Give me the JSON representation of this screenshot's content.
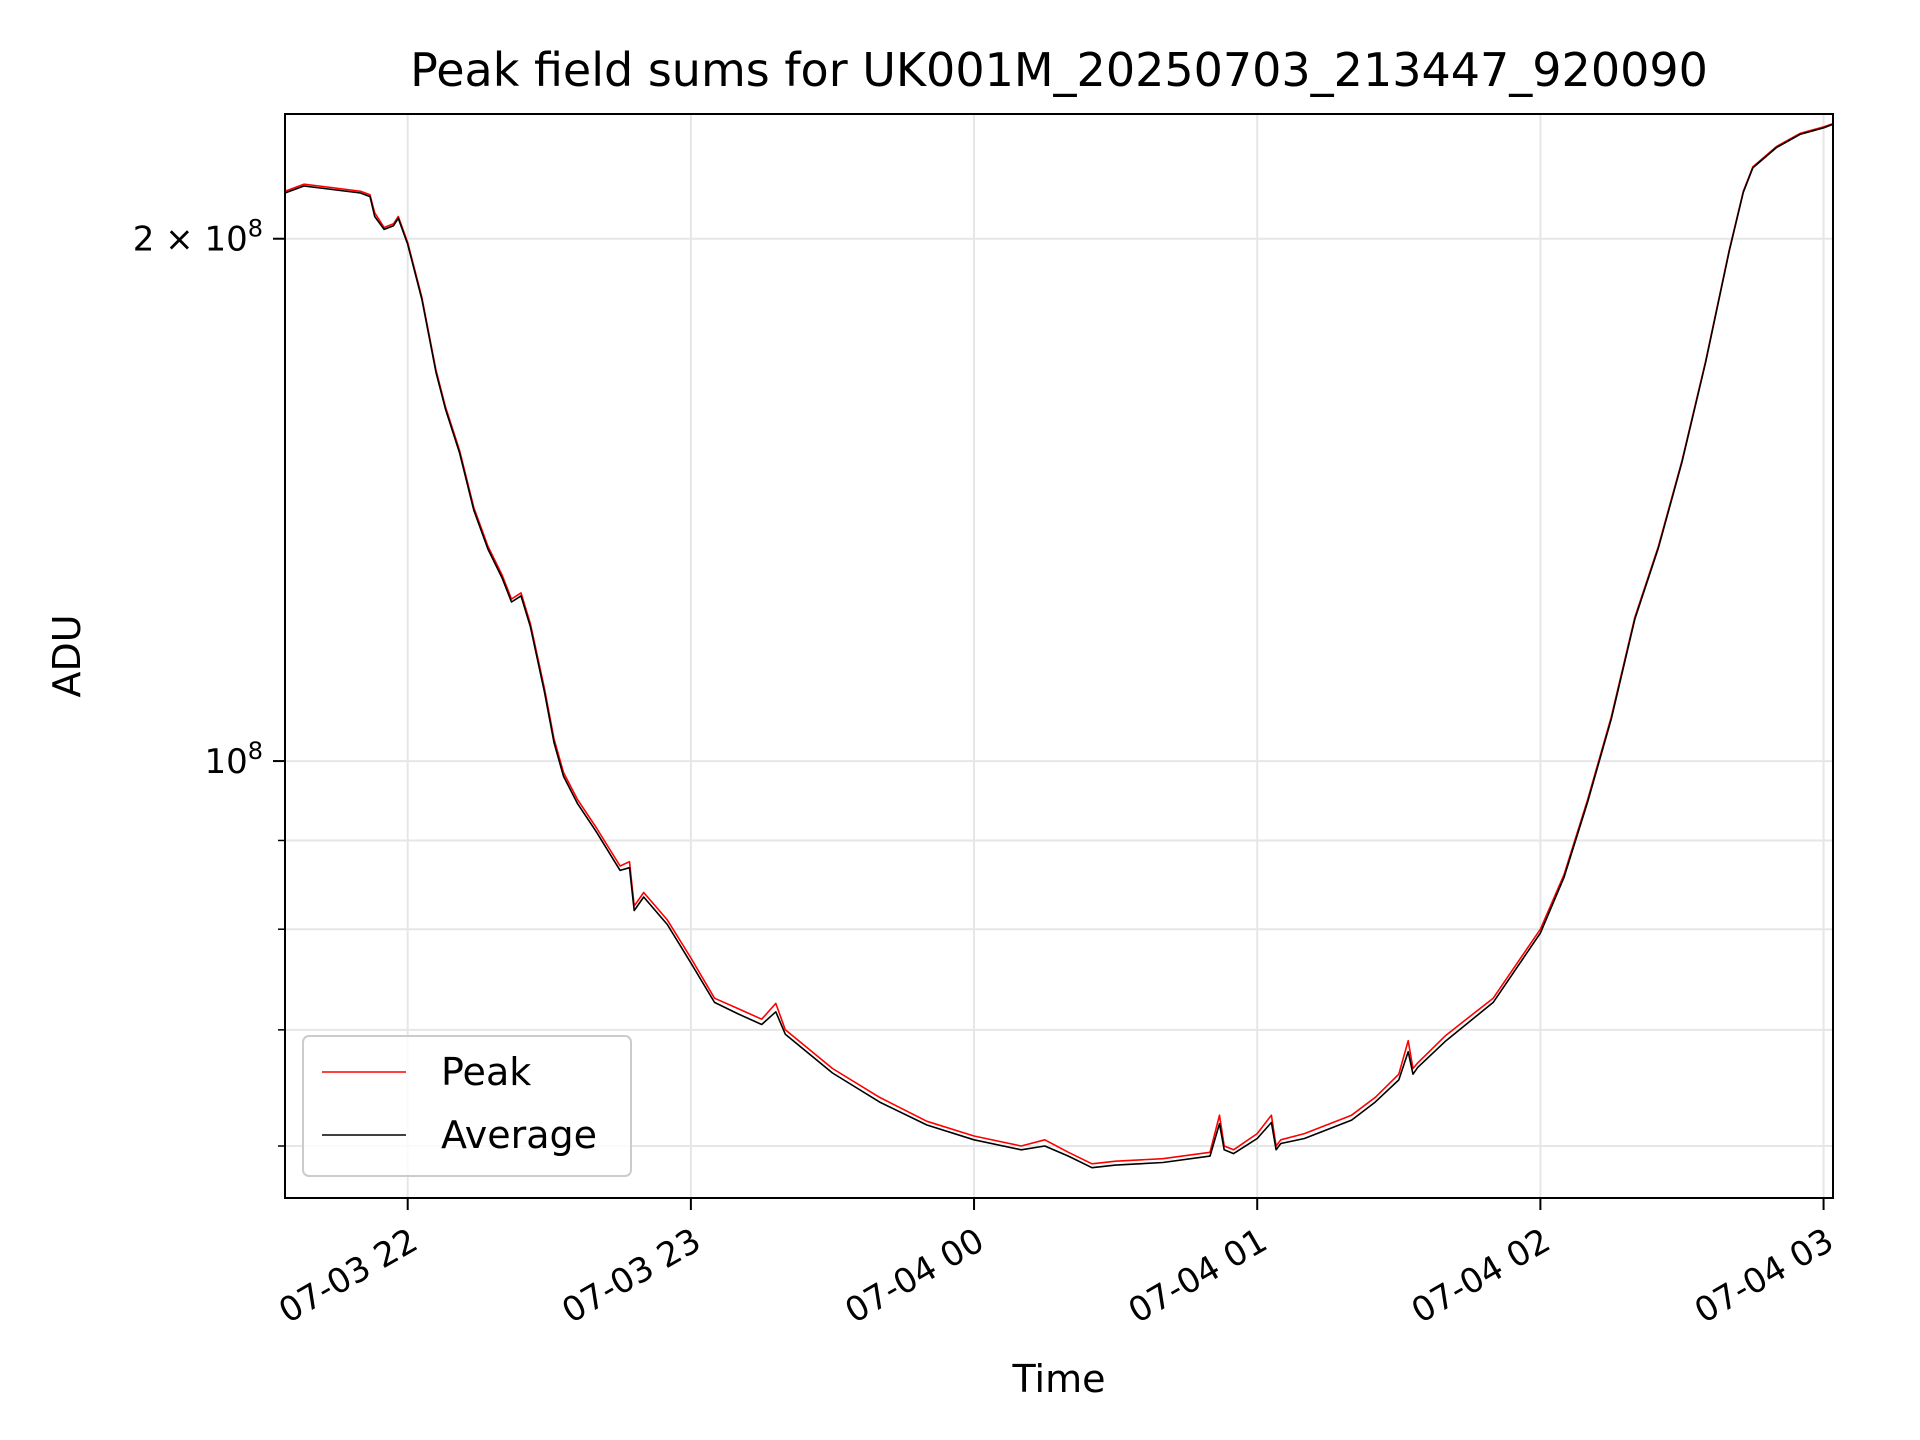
{
  "chart_data": {
    "type": "line",
    "title": "Peak field sums for UK001M_20250703_213447_920090",
    "xlabel": "Time",
    "ylabel": "ADU",
    "y_scale": "log",
    "ylim": [
      56000000,
      236000000
    ],
    "xlim": [
      "2025-07-03 21:34",
      "2025-07-04 03:02"
    ],
    "grid": true,
    "legend_placement": "lower-left",
    "x_ticks": [
      {
        "time": "2025-07-03 22:00",
        "label": "07-03 22"
      },
      {
        "time": "2025-07-03 23:00",
        "label": "07-03 23"
      },
      {
        "time": "2025-07-04 00:00",
        "label": "07-04 00"
      },
      {
        "time": "2025-07-04 01:00",
        "label": "07-04 01"
      },
      {
        "time": "2025-07-04 02:00",
        "label": "07-04 02"
      },
      {
        "time": "2025-07-04 03:00",
        "label": "07-04 03"
      }
    ],
    "y_ticks": [
      {
        "value": 100000000,
        "base": "10",
        "exp": "8"
      },
      {
        "value": 200000000,
        "base": "2 × 10",
        "exp": "8"
      }
    ],
    "y_minor_ticks": [
      60000000,
      70000000,
      80000000,
      90000000
    ],
    "x": [
      "2025-07-03 21:34",
      "2025-07-03 21:38",
      "2025-07-03 21:44",
      "2025-07-03 21:50",
      "2025-07-03 21:52",
      "2025-07-03 21:53",
      "2025-07-03 21:55",
      "2025-07-03 21:57",
      "2025-07-03 21:58",
      "2025-07-03 22:00",
      "2025-07-03 22:03",
      "2025-07-03 22:06",
      "2025-07-03 22:08",
      "2025-07-03 22:11",
      "2025-07-03 22:14",
      "2025-07-03 22:17",
      "2025-07-03 22:20",
      "2025-07-03 22:22",
      "2025-07-03 22:24",
      "2025-07-03 22:26",
      "2025-07-03 22:29",
      "2025-07-03 22:31",
      "2025-07-03 22:33",
      "2025-07-03 22:36",
      "2025-07-03 22:40",
      "2025-07-03 22:45",
      "2025-07-03 22:47",
      "2025-07-03 22:48",
      "2025-07-03 22:50",
      "2025-07-03 22:55",
      "2025-07-03 23:00",
      "2025-07-03 23:05",
      "2025-07-03 23:10",
      "2025-07-03 23:15",
      "2025-07-03 23:18",
      "2025-07-03 23:20",
      "2025-07-03 23:30",
      "2025-07-03 23:40",
      "2025-07-03 23:50",
      "2025-07-04 00:00",
      "2025-07-04 00:10",
      "2025-07-04 00:15",
      "2025-07-04 00:20",
      "2025-07-04 00:25",
      "2025-07-04 00:30",
      "2025-07-04 00:40",
      "2025-07-04 00:50",
      "2025-07-04 00:52",
      "2025-07-04 00:53",
      "2025-07-04 00:55",
      "2025-07-04 01:00",
      "2025-07-04 01:03",
      "2025-07-04 01:04",
      "2025-07-04 01:05",
      "2025-07-04 01:10",
      "2025-07-04 01:20",
      "2025-07-04 01:25",
      "2025-07-04 01:30",
      "2025-07-04 01:32",
      "2025-07-04 01:33",
      "2025-07-04 01:34",
      "2025-07-04 01:40",
      "2025-07-04 01:50",
      "2025-07-04 02:00",
      "2025-07-04 02:05",
      "2025-07-04 02:10",
      "2025-07-04 02:15",
      "2025-07-04 02:20",
      "2025-07-04 02:25",
      "2025-07-04 02:30",
      "2025-07-04 02:35",
      "2025-07-04 02:40",
      "2025-07-04 02:43",
      "2025-07-04 02:45",
      "2025-07-04 02:50",
      "2025-07-04 02:55",
      "2025-07-04 03:00",
      "2025-07-04 03:02"
    ],
    "series": [
      {
        "name": "Peak",
        "color": "#ff0000",
        "values": [
          213000000,
          215000000,
          214000000,
          213000000,
          212000000,
          207000000,
          203000000,
          204000000,
          206000000,
          199000000,
          185000000,
          168000000,
          160000000,
          151000000,
          140000000,
          133000000,
          128000000,
          124000000,
          125000000,
          120000000,
          110000000,
          103000000,
          98500000,
          95000000,
          91500000,
          87000000,
          87500000,
          82500000,
          84000000,
          81000000,
          77000000,
          73000000,
          72000000,
          71000000,
          72500000,
          70000000,
          66500000,
          64000000,
          62000000,
          60800000,
          60000000,
          60500000,
          59500000,
          58600000,
          58800000,
          59000000,
          59500000,
          62500000,
          60000000,
          59700000,
          61000000,
          62500000,
          60000000,
          60500000,
          61000000,
          62500000,
          64000000,
          66000000,
          69000000,
          66500000,
          67000000,
          69500000,
          73000000,
          80000000,
          86000000,
          95000000,
          106000000,
          121000000,
          133000000,
          149000000,
          170000000,
          197000000,
          213000000,
          220000000,
          226000000,
          230000000,
          232000000,
          233000000
        ]
      },
      {
        "name": "Average",
        "color": "#000000",
        "values": [
          212500000,
          214500000,
          213500000,
          212500000,
          211500000,
          206000000,
          202500000,
          203500000,
          205500000,
          198500000,
          184500000,
          167500000,
          159500000,
          150500000,
          139500000,
          132500000,
          127500000,
          123500000,
          124500000,
          119500000,
          109500000,
          102500000,
          98000000,
          94500000,
          91000000,
          86500000,
          86800000,
          82000000,
          83500000,
          80500000,
          76500000,
          72600000,
          71500000,
          70500000,
          71700000,
          69600000,
          66100000,
          63600000,
          61700000,
          60500000,
          59700000,
          60000000,
          59200000,
          58300000,
          58500000,
          58700000,
          59200000,
          61800000,
          59700000,
          59400000,
          60600000,
          61900000,
          59700000,
          60200000,
          60600000,
          62100000,
          63600000,
          65500000,
          68000000,
          66000000,
          66600000,
          69000000,
          72600000,
          79600000,
          85700000,
          94700000,
          105700000,
          120700000,
          132700000,
          148700000,
          169700000,
          196700000,
          212700000,
          219700000,
          225700000,
          229700000,
          231700000,
          232800000
        ]
      }
    ]
  }
}
